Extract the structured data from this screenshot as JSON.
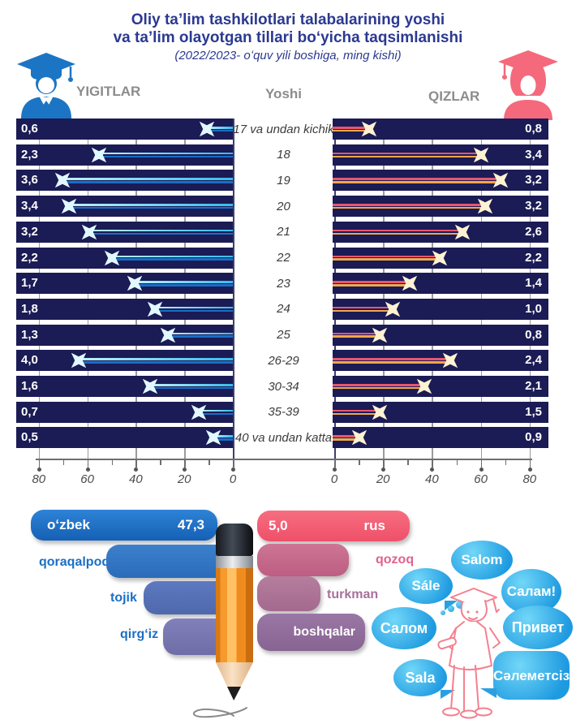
{
  "title": {
    "line1": "Oliy ta’lim tashkilotlari talabalarining yoshi",
    "line2": "va ta’lim olayotgan tillari boʻyicha taqsimlanishi",
    "subtitle": "(2022/2023- oʻquv yili boshiga, ming kishi)"
  },
  "headers": {
    "left": "YIGITLAR",
    "center": "Yoshi",
    "right": "QIZLAR"
  },
  "colors": {
    "bar_navy": "#1b1b55",
    "male_accent": "#1b75c4",
    "female_accent": "#f4697c",
    "male_marker": "#8fe2f9",
    "female_marker": "#f0b84a",
    "title_blue": "#2b3990",
    "bubble_blue": "#2aa0e0"
  },
  "chart_data": {
    "type": "population-pyramid",
    "title": "Oliy ta’lim tashkilotlari talabalarining yoshi va ta’lim olayotgan tillari boʻyicha taqsimlanishi",
    "subtitle": "2022/2023- oʻquv yili boshiga, ming kishi",
    "legend": [
      "YIGITLAR",
      "QIZLAR"
    ],
    "axis": {
      "min": 0,
      "max": 80,
      "left_tick_labels": [
        "80",
        "60",
        "40",
        "20",
        "0"
      ],
      "right_tick_labels": [
        "0",
        "20",
        "40",
        "60",
        "80"
      ]
    },
    "rows": [
      {
        "age": "17 va undan kichik",
        "male": "0,6",
        "female": "0,8",
        "male_marker": 10.7,
        "female_marker": 14.3
      },
      {
        "age": "18",
        "male": "2,3",
        "female": "3,4",
        "male_marker": 55.2,
        "female_marker": 60.1
      },
      {
        "age": "19",
        "male": "3,6",
        "female": "3,2",
        "male_marker": 70.2,
        "female_marker": 68.1
      },
      {
        "age": "20",
        "male": "3,4",
        "female": "3,2",
        "male_marker": 67.6,
        "female_marker": 61.8
      },
      {
        "age": "21",
        "male": "3,2",
        "female": "2,6",
        "male_marker": 59.2,
        "female_marker": 52.5
      },
      {
        "age": "22",
        "male": "2,2",
        "female": "2,2",
        "male_marker": 49.8,
        "female_marker": 43.2
      },
      {
        "age": "23",
        "male": "1,7",
        "female": "1,4",
        "male_marker": 40.5,
        "female_marker": 30.9
      },
      {
        "age": "24",
        "male": "1,8",
        "female": "1,0",
        "male_marker": 32.1,
        "female_marker": 23.9
      },
      {
        "age": "25",
        "male": "1,3",
        "female": "0,8",
        "male_marker": 26.8,
        "female_marker": 18.6
      },
      {
        "age": "26-29",
        "male": "4,0",
        "female": "2,4",
        "male_marker": 63.5,
        "female_marker": 47.5
      },
      {
        "age": "30-34",
        "male": "1,6",
        "female": "2,1",
        "male_marker": 34.1,
        "female_marker": 36.9
      },
      {
        "age": "35-39",
        "male": "0,7",
        "female": "1,5",
        "male_marker": 14.0,
        "female_marker": 18.6
      },
      {
        "age": "40 va undan katta",
        "male": "0,5",
        "female": "0,9",
        "male_marker": 8.0,
        "female_marker": 10.3
      }
    ],
    "languages": {
      "left": [
        {
          "label": "oʻzbek",
          "value": "47,3"
        },
        {
          "label": "qoraqalpoq",
          "value": ""
        },
        {
          "label": "tojik",
          "value": ""
        },
        {
          "label": "qirgʻiz",
          "value": ""
        }
      ],
      "right": [
        {
          "label": "rus",
          "value": "5,0"
        },
        {
          "label": "qozoq",
          "value": ""
        },
        {
          "label": "turkman",
          "value": ""
        },
        {
          "label": "boshqalar",
          "value": ""
        }
      ]
    }
  },
  "bubbles": [
    "Salom",
    "Sále",
    "Салам!",
    "Салом",
    "Привет",
    "Sala",
    "Сәлеметсіз"
  ]
}
